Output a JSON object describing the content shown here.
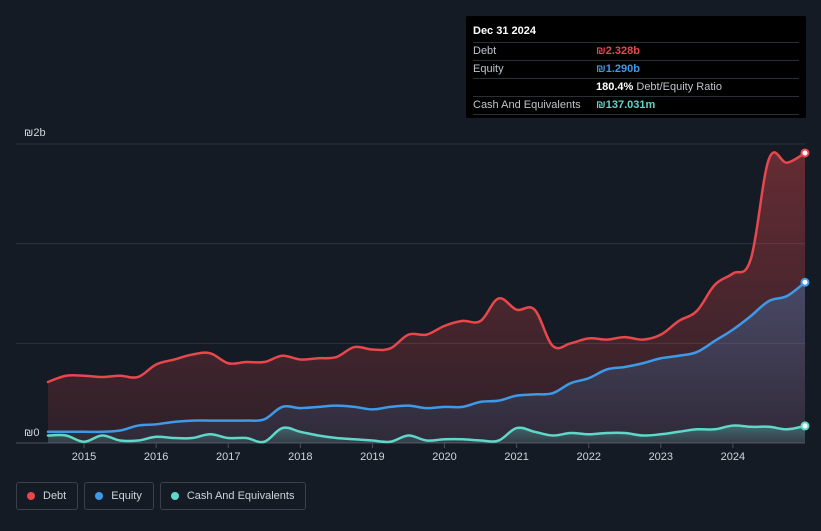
{
  "tooltip": {
    "date": "Dec 31 2024",
    "rows": [
      {
        "label": "Debt",
        "value": "₪2.328b",
        "color": "#e8474c"
      },
      {
        "label": "Equity",
        "value": "₪1.290b",
        "color": "#3d9ae8"
      },
      {
        "label": "",
        "value": "180.4%",
        "sub": "Debt/Equity Ratio",
        "color": "#ffffff"
      },
      {
        "label": "Cash And Equivalents",
        "value": "₪137.031m",
        "color": "#5fd7c9"
      }
    ]
  },
  "legend": [
    {
      "label": "Debt",
      "color": "#e8474c"
    },
    {
      "label": "Equity",
      "color": "#3d9ae8"
    },
    {
      "label": "Cash And Equivalents",
      "color": "#5fd7c9"
    }
  ],
  "chart_data": {
    "type": "area",
    "y_tick_labels": [
      "₪0",
      "₪2b"
    ],
    "ylim": [
      0,
      2.4
    ],
    "xlim": [
      2014.5,
      2025.0
    ],
    "x_ticks": [
      2015,
      2016,
      2017,
      2018,
      2019,
      2020,
      2021,
      2022,
      2023,
      2024
    ],
    "x_tick_labels": [
      "2015",
      "2016",
      "2017",
      "2018",
      "2019",
      "2020",
      "2021",
      "2022",
      "2023",
      "2024"
    ],
    "grid": true,
    "legend_position": "bottom-left",
    "series": [
      {
        "name": "Debt",
        "color": "#e8474c",
        "x": [
          2014.5,
          2014.75,
          2015.0,
          2015.25,
          2015.5,
          2015.75,
          2016.0,
          2016.25,
          2016.5,
          2016.75,
          2017.0,
          2017.25,
          2017.5,
          2017.75,
          2018.0,
          2018.25,
          2018.5,
          2018.75,
          2019.0,
          2019.25,
          2019.5,
          2019.75,
          2020.0,
          2020.25,
          2020.5,
          2020.75,
          2021.0,
          2021.25,
          2021.5,
          2021.75,
          2022.0,
          2022.25,
          2022.5,
          2022.75,
          2023.0,
          2023.25,
          2023.5,
          2023.75,
          2024.0,
          2024.25,
          2024.5,
          2024.75,
          2025.0
        ],
        "values": [
          0.49,
          0.54,
          0.54,
          0.53,
          0.54,
          0.53,
          0.63,
          0.67,
          0.71,
          0.72,
          0.64,
          0.65,
          0.65,
          0.7,
          0.67,
          0.68,
          0.69,
          0.77,
          0.75,
          0.76,
          0.87,
          0.87,
          0.94,
          0.98,
          0.98,
          1.16,
          1.07,
          1.07,
          0.78,
          0.8,
          0.84,
          0.83,
          0.85,
          0.83,
          0.87,
          0.98,
          1.06,
          1.27,
          1.36,
          1.48,
          2.28,
          2.25,
          2.328
        ]
      },
      {
        "name": "Equity",
        "color": "#3d9ae8",
        "x": [
          2014.5,
          2014.75,
          2015.0,
          2015.25,
          2015.5,
          2015.75,
          2016.0,
          2016.25,
          2016.5,
          2016.75,
          2017.0,
          2017.25,
          2017.5,
          2017.75,
          2018.0,
          2018.25,
          2018.5,
          2018.75,
          2019.0,
          2019.25,
          2019.5,
          2019.75,
          2020.0,
          2020.25,
          2020.5,
          2020.75,
          2021.0,
          2021.25,
          2021.5,
          2021.75,
          2022.0,
          2022.25,
          2022.5,
          2022.75,
          2023.0,
          2023.25,
          2023.5,
          2023.75,
          2024.0,
          2024.25,
          2024.5,
          2024.75,
          2025.0
        ],
        "values": [
          0.09,
          0.09,
          0.09,
          0.09,
          0.1,
          0.14,
          0.15,
          0.17,
          0.18,
          0.18,
          0.18,
          0.18,
          0.19,
          0.29,
          0.28,
          0.29,
          0.3,
          0.29,
          0.27,
          0.29,
          0.3,
          0.28,
          0.29,
          0.29,
          0.33,
          0.34,
          0.38,
          0.39,
          0.4,
          0.48,
          0.52,
          0.59,
          0.61,
          0.64,
          0.68,
          0.7,
          0.73,
          0.82,
          0.91,
          1.02,
          1.14,
          1.18,
          1.29
        ]
      },
      {
        "name": "Cash And Equivalents",
        "color": "#5fd7c9",
        "x": [
          2014.5,
          2014.75,
          2015.0,
          2015.25,
          2015.5,
          2015.75,
          2016.0,
          2016.25,
          2016.5,
          2016.75,
          2017.0,
          2017.25,
          2017.5,
          2017.75,
          2018.0,
          2018.25,
          2018.5,
          2018.75,
          2019.0,
          2019.25,
          2019.5,
          2019.75,
          2020.0,
          2020.25,
          2020.5,
          2020.75,
          2021.0,
          2021.25,
          2021.5,
          2021.75,
          2022.0,
          2022.25,
          2022.5,
          2022.75,
          2023.0,
          2023.25,
          2023.5,
          2023.75,
          2024.0,
          2024.25,
          2024.5,
          2024.75,
          2025.0
        ],
        "values": [
          0.06,
          0.06,
          0.01,
          0.06,
          0.02,
          0.02,
          0.05,
          0.04,
          0.04,
          0.07,
          0.04,
          0.04,
          0.01,
          0.12,
          0.09,
          0.06,
          0.04,
          0.03,
          0.02,
          0.01,
          0.06,
          0.02,
          0.03,
          0.03,
          0.02,
          0.02,
          0.12,
          0.09,
          0.06,
          0.08,
          0.07,
          0.08,
          0.08,
          0.06,
          0.07,
          0.09,
          0.11,
          0.11,
          0.14,
          0.13,
          0.13,
          0.11,
          0.137
        ]
      }
    ]
  }
}
